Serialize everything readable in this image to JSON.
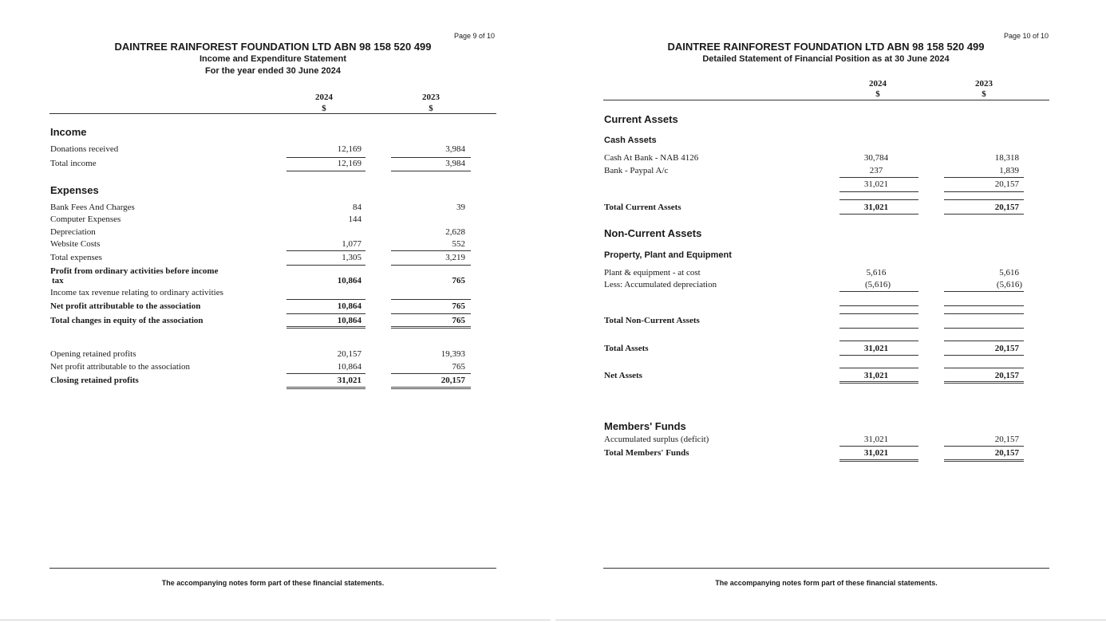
{
  "left": {
    "page_number": "Page 9 of 10",
    "title": "DAINTREE RAINFOREST FOUNDATION LTD ABN 98 158 520 499",
    "subtitle": "Income and Expenditure Statement",
    "period": "For the year ended 30 June 2024",
    "col_2024": "2024",
    "col_2023": "2023",
    "currency": "$",
    "income_heading": "Income",
    "income_rows": [
      {
        "label": "Donations received",
        "v2024": "12,169",
        "v2023": "3,984"
      },
      {
        "label": "Total income",
        "v2024": "12,169",
        "v2023": "3,984"
      }
    ],
    "expenses_heading": "Expenses",
    "expense_rows": [
      {
        "label": "Bank Fees And Charges",
        "v2024": "84",
        "v2023": "39"
      },
      {
        "label": "Computer Expenses",
        "v2024": "144",
        "v2023": ""
      },
      {
        "label": "Depreciation",
        "v2024": "",
        "v2023": "2,628"
      },
      {
        "label": "Website Costs",
        "v2024": "1,077",
        "v2023": "552"
      },
      {
        "label": "Total expenses",
        "v2024": "1,305",
        "v2023": "3,219"
      }
    ],
    "profit_before_tax": {
      "label_line1": "Profit from ordinary activities before income",
      "label_line2": "tax",
      "v2024": "10,864",
      "v2023": "765"
    },
    "income_tax": {
      "label": "Income tax revenue relating to ordinary activities"
    },
    "net_profit": {
      "label": "Net profit attributable to the association",
      "v2024": "10,864",
      "v2023": "765"
    },
    "total_changes": {
      "label": "Total changes in equity of the association",
      "v2024": "10,864",
      "v2023": "765"
    },
    "retained_rows": [
      {
        "label": "Opening retained profits",
        "v2024": "20,157",
        "v2023": "19,393"
      },
      {
        "label": "Net profit attributable to the association",
        "v2024": "10,864",
        "v2023": "765"
      },
      {
        "label": "Closing retained profits",
        "v2024": "31,021",
        "v2023": "20,157"
      }
    ],
    "footer": "The accompanying notes form part of these financial statements."
  },
  "right": {
    "page_number": "Page 10 of 10",
    "title": "DAINTREE RAINFOREST FOUNDATION LTD ABN 98 158 520 499",
    "subtitle": "Detailed Statement of Financial Position as at 30 June 2024",
    "col_2024": "2024",
    "col_2023": "2023",
    "currency": "$",
    "current_assets_heading": "Current Assets",
    "cash_assets_heading": "Cash Assets",
    "cash_rows": [
      {
        "label": "Cash At Bank - NAB 4126",
        "v2024": "30,784",
        "v2023": "18,318"
      },
      {
        "label": "Bank - Paypal A/c",
        "v2024": "237",
        "v2023": "1,839"
      }
    ],
    "cash_subtotal": {
      "v2024": "31,021",
      "v2023": "20,157"
    },
    "total_current_assets": {
      "label": "Total Current Assets",
      "v2024": "31,021",
      "v2023": "20,157"
    },
    "non_current_heading": "Non-Current Assets",
    "ppe_heading": "Property, Plant and Equipment",
    "ppe_rows": [
      {
        "label": "Plant & equipment - at cost",
        "v2024": "5,616",
        "v2023": "5,616"
      },
      {
        "label": "Less: Accumulated depreciation",
        "v2024": "(5,616)",
        "v2023": "(5,616)"
      }
    ],
    "total_non_current": {
      "label": "Total Non-Current Assets"
    },
    "total_assets": {
      "label": "Total Assets",
      "v2024": "31,021",
      "v2023": "20,157"
    },
    "net_assets": {
      "label": "Net Assets",
      "v2024": "31,021",
      "v2023": "20,157"
    },
    "members_heading": "Members' Funds",
    "accumulated": {
      "label": "Accumulated surplus (deficit)",
      "v2024": "31,021",
      "v2023": "20,157"
    },
    "total_members": {
      "label": "Total Members' Funds",
      "v2024": "31,021",
      "v2023": "20,157"
    },
    "footer": "The accompanying notes form part of these financial statements."
  }
}
